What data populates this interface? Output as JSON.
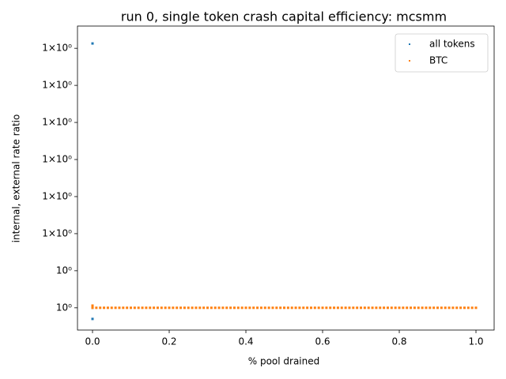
{
  "chart_data": {
    "type": "scatter",
    "title": "run 0, single token crash capital efficiency: mcsmm",
    "xlabel": "% pool drained",
    "ylabel": "internal, external rate ratio",
    "yscale": "log",
    "xlim": [
      -0.0392,
      1.0474
    ],
    "ylim": [
      0.999994,
      1.000076
    ],
    "xticks": [
      {
        "value": 0,
        "label": "0.0"
      },
      {
        "value": 0.2,
        "label": "0.2"
      },
      {
        "value": 0.4,
        "label": "0.4"
      },
      {
        "value": 0.6,
        "label": "0.6"
      },
      {
        "value": 0.8,
        "label": "0.8"
      },
      {
        "value": 1,
        "label": "1.0"
      }
    ],
    "yticks": [
      {
        "value": 1,
        "label": "10⁰"
      },
      {
        "value": 1.00001,
        "label": "10⁰"
      },
      {
        "value": 1.00002,
        "label": "1×10⁰"
      },
      {
        "value": 1.00003,
        "label": "1×10⁰"
      },
      {
        "value": 1.00004,
        "label": "1×10⁰"
      },
      {
        "value": 1.00005,
        "label": "1×10⁰"
      },
      {
        "value": 1.00006,
        "label": "1×10⁰"
      },
      {
        "value": 1.00007,
        "label": "1×10⁰"
      }
    ],
    "legend": "upper right",
    "series": [
      {
        "name": "all tokens",
        "color": "#1f77b4",
        "x": [
          0,
          0,
          0
        ],
        "values": [
          1.0000713,
          0.999997,
          1
        ]
      },
      {
        "name": "BTC",
        "color": "#ff7f0e",
        "x": [
          0,
          0,
          0.01,
          0.02,
          0.03,
          0.04,
          0.05,
          0.06,
          0.07,
          0.08,
          0.09,
          0.1,
          0.11,
          0.12,
          0.13,
          0.14,
          0.15,
          0.16,
          0.17,
          0.18,
          0.19,
          0.2,
          0.21,
          0.22,
          0.23,
          0.24,
          0.25,
          0.26,
          0.27,
          0.28,
          0.29,
          0.3,
          0.31,
          0.32,
          0.33,
          0.34,
          0.35,
          0.36,
          0.37,
          0.38,
          0.39,
          0.4,
          0.41,
          0.42,
          0.43,
          0.44,
          0.45,
          0.46,
          0.47,
          0.48,
          0.49,
          0.5,
          0.51,
          0.52,
          0.53,
          0.54,
          0.55,
          0.56,
          0.57,
          0.58,
          0.59,
          0.6,
          0.61,
          0.62,
          0.63,
          0.64,
          0.65,
          0.66,
          0.67,
          0.68,
          0.69,
          0.7,
          0.71,
          0.72,
          0.73,
          0.74,
          0.75,
          0.76,
          0.77,
          0.78,
          0.79,
          0.8,
          0.81,
          0.82,
          0.83,
          0.84,
          0.85,
          0.86,
          0.87,
          0.88,
          0.89,
          0.9,
          0.91,
          0.92,
          0.93,
          0.94,
          0.95,
          0.96,
          0.97,
          0.98,
          0.99,
          1
        ],
        "values": [
          1.0000006,
          1,
          1,
          1,
          1,
          1,
          1,
          1,
          1,
          1,
          1,
          1,
          1,
          1,
          1,
          1,
          1,
          1,
          1,
          1,
          1,
          1,
          1,
          1,
          1,
          1,
          1,
          1,
          1,
          1,
          1,
          1,
          1,
          1,
          1,
          1,
          1,
          1,
          1,
          1,
          1,
          1,
          1,
          1,
          1,
          1,
          1,
          1,
          1,
          1,
          1,
          1,
          1,
          1,
          1,
          1,
          1,
          1,
          1,
          1,
          1,
          1,
          1,
          1,
          1,
          1,
          1,
          1,
          1,
          1,
          1,
          1,
          1,
          1,
          1,
          1,
          1,
          1,
          1,
          1,
          1,
          1,
          1,
          1,
          1,
          1,
          1,
          1,
          1,
          1,
          1,
          1,
          1,
          1,
          1,
          1,
          1,
          1,
          1,
          1,
          1,
          1
        ]
      }
    ]
  }
}
